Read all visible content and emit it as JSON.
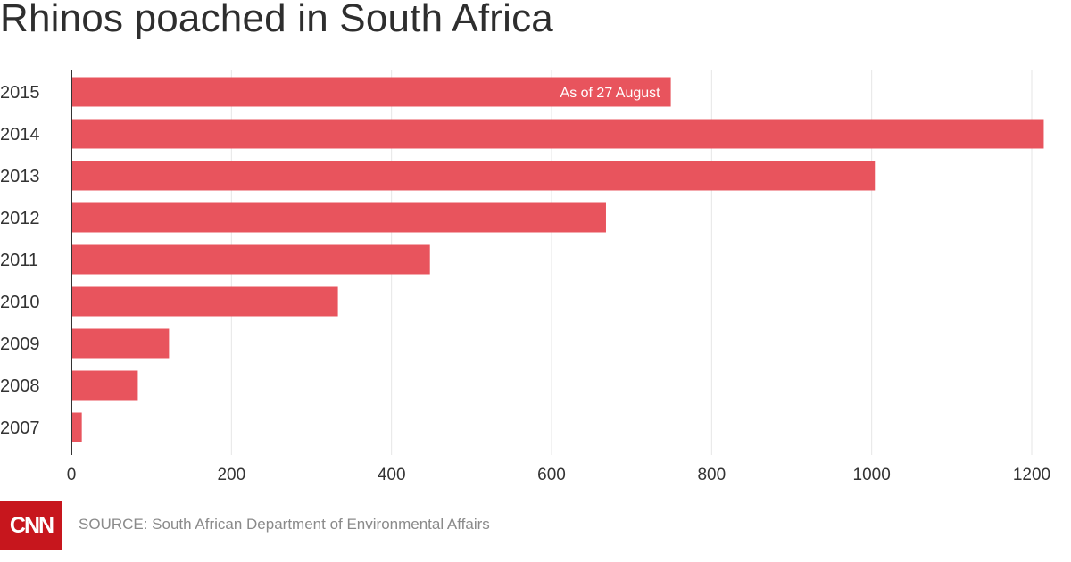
{
  "title": "Rhinos poached in South Africa",
  "source": "SOURCE: South African Department of Environmental Affairs",
  "logo": "CNN",
  "colors": {
    "bar": "#e8545d",
    "logo_bg": "#c7161d",
    "grid": "#e6e6e6",
    "axis": "#333333"
  },
  "chart_data": {
    "type": "bar",
    "orientation": "horizontal",
    "title": "Rhinos poached in South Africa",
    "categories": [
      "2015",
      "2014",
      "2013",
      "2012",
      "2011",
      "2010",
      "2009",
      "2008",
      "2007"
    ],
    "values": [
      749,
      1215,
      1004,
      668,
      448,
      333,
      122,
      83,
      13
    ],
    "xlim": [
      0,
      1200
    ],
    "xticks": [
      0,
      200,
      400,
      600,
      800,
      1000,
      1200
    ],
    "grid": true,
    "annotations": [
      {
        "category": "2015",
        "text": "As of 27 August"
      }
    ]
  }
}
